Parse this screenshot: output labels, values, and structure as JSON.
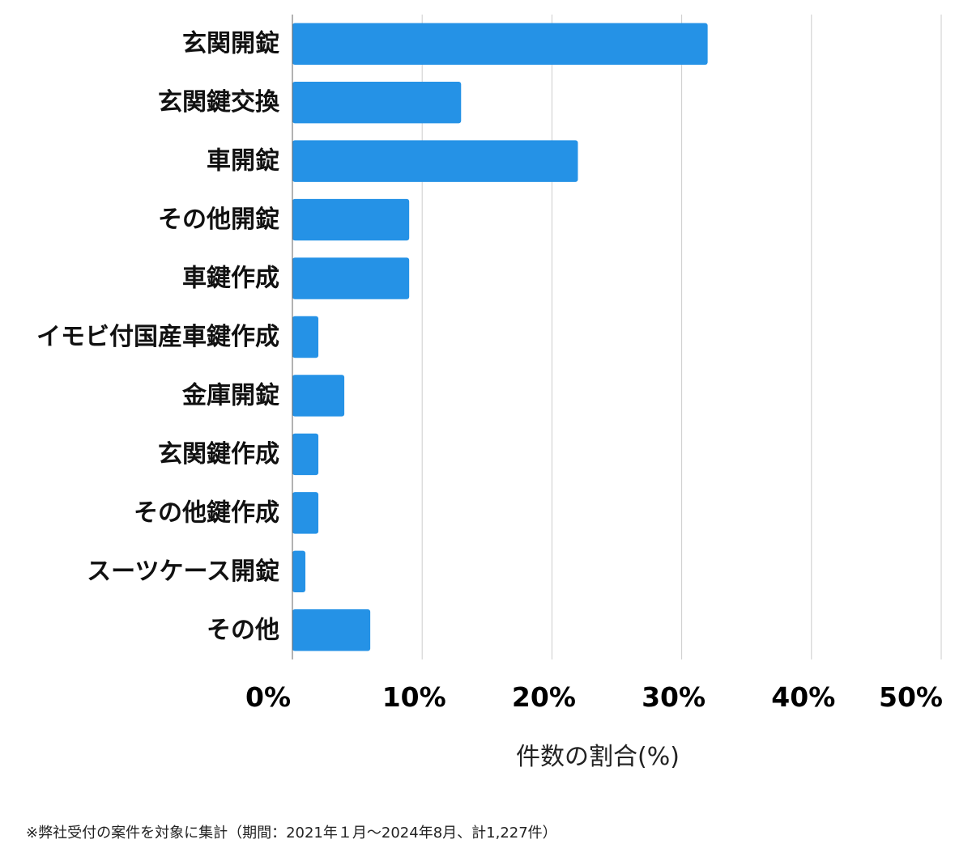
{
  "colors": {
    "bar": "#2592E6",
    "grid": "#cccccc",
    "axis": "#666666"
  },
  "chart_data": {
    "type": "bar",
    "orientation": "horizontal",
    "categories": [
      "玄関開錠",
      "玄関鍵交換",
      "車開錠",
      "その他開錠",
      "車鍵作成",
      "イモビ付国産車鍵作成",
      "金庫開錠",
      "玄関鍵作成",
      "その他鍵作成",
      "スーツケース開錠",
      "その他"
    ],
    "values": [
      32,
      13,
      22,
      9,
      9,
      2,
      4,
      2,
      2,
      1,
      6
    ],
    "xlim": [
      0,
      50
    ],
    "xticks": [
      0,
      10,
      20,
      30,
      40,
      50
    ],
    "xtick_labels": [
      "0%",
      "10%",
      "20%",
      "30%",
      "40%",
      "50%"
    ],
    "xlabel": "件数の割合(%)",
    "grid": "vertical"
  },
  "footnote": "※弊社受付の案件を対象に集計（期間：2021年１月〜2024年8月、計1,227件）"
}
